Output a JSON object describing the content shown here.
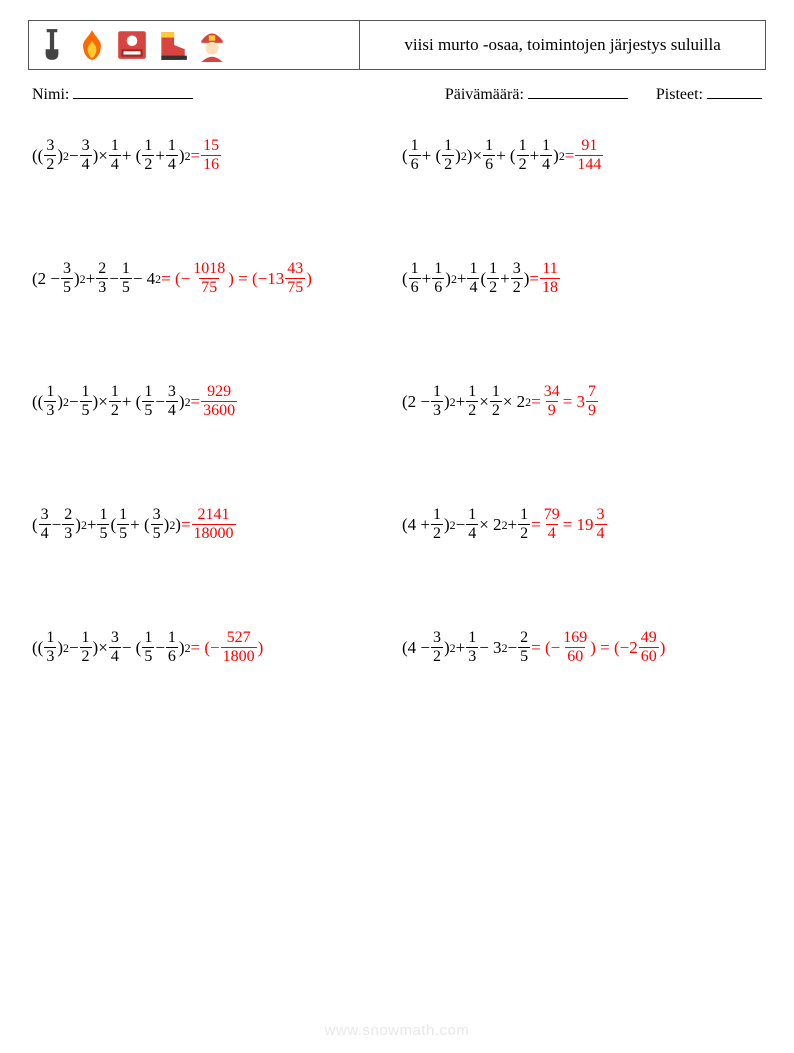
{
  "title": "viisi murto -osaa, toimintojen järjestys suluilla",
  "labels": {
    "name": "Nimi:",
    "date": "Päivämäärä:",
    "score": "Pisteet:"
  },
  "footer": "www.snowmath.com",
  "icons": [
    {
      "name": "shovel-icon",
      "fg": "#444444",
      "bg": "none",
      "shape": "shovel"
    },
    {
      "name": "fire-icon",
      "fg": "#ff6a00",
      "bg": "none",
      "shape": "flame"
    },
    {
      "name": "alarm-icon",
      "fg": "#ffffff",
      "bg": "#d8443f",
      "shape": "alarm"
    },
    {
      "name": "boot-icon",
      "fg": "#d8443f",
      "bg": "#ffcc33",
      "shape": "boot"
    },
    {
      "name": "fireman-icon",
      "fg": "#d8443f",
      "bg": "#ffcc33",
      "shape": "fireman"
    }
  ],
  "colors": {
    "text": "#000000",
    "answer": "#ff0000",
    "border": "#555555",
    "footer": "#e8e8e8"
  },
  "problems": [
    {
      "lhs": [
        {
          "t": "("
        },
        {
          "t": "("
        },
        {
          "frac": [
            3,
            2
          ]
        },
        {
          "t": ")"
        },
        {
          "sup": "2"
        },
        {
          "t": " − "
        },
        {
          "frac": [
            3,
            4
          ]
        },
        {
          "t": ")"
        },
        {
          "t": " × "
        },
        {
          "frac": [
            1,
            4
          ]
        },
        {
          "t": " + ("
        },
        {
          "frac": [
            1,
            2
          ]
        },
        {
          "t": " + "
        },
        {
          "frac": [
            1,
            4
          ]
        },
        {
          "t": ")"
        },
        {
          "sup": "2"
        }
      ],
      "rhs": [
        {
          "t": " = "
        },
        {
          "frac": [
            15,
            16
          ]
        }
      ]
    },
    {
      "lhs": [
        {
          "t": "("
        },
        {
          "frac": [
            1,
            6
          ]
        },
        {
          "t": " + ("
        },
        {
          "frac": [
            1,
            2
          ]
        },
        {
          "t": ")"
        },
        {
          "sup": "2"
        },
        {
          "t": ")"
        },
        {
          "t": " × "
        },
        {
          "frac": [
            1,
            6
          ]
        },
        {
          "t": " + ("
        },
        {
          "frac": [
            1,
            2
          ]
        },
        {
          "t": " + "
        },
        {
          "frac": [
            1,
            4
          ]
        },
        {
          "t": ")"
        },
        {
          "sup": "2"
        }
      ],
      "rhs": [
        {
          "t": " = "
        },
        {
          "frac": [
            91,
            144
          ]
        }
      ]
    },
    {
      "lhs": [
        {
          "t": "(2 − "
        },
        {
          "frac": [
            3,
            5
          ]
        },
        {
          "t": ")"
        },
        {
          "sup": "2"
        },
        {
          "t": " + "
        },
        {
          "frac": [
            2,
            3
          ]
        },
        {
          "t": " − "
        },
        {
          "frac": [
            1,
            5
          ]
        },
        {
          "t": " − 4"
        },
        {
          "sup": "2"
        }
      ],
      "rhs": [
        {
          "t": " = (−"
        },
        {
          "frac": [
            1018,
            75
          ]
        },
        {
          "t": ") = (−13"
        },
        {
          "frac": [
            43,
            75
          ]
        },
        {
          "t": ")"
        }
      ]
    },
    {
      "lhs": [
        {
          "t": "("
        },
        {
          "frac": [
            1,
            6
          ]
        },
        {
          "t": " + "
        },
        {
          "frac": [
            1,
            6
          ]
        },
        {
          "t": ")"
        },
        {
          "sup": "2"
        },
        {
          "t": " + "
        },
        {
          "frac": [
            1,
            4
          ]
        },
        {
          "t": "("
        },
        {
          "frac": [
            1,
            2
          ]
        },
        {
          "t": " + "
        },
        {
          "frac": [
            3,
            2
          ]
        },
        {
          "t": ")"
        }
      ],
      "rhs": [
        {
          "t": " = "
        },
        {
          "frac": [
            11,
            18
          ]
        }
      ]
    },
    {
      "lhs": [
        {
          "t": "(("
        },
        {
          "frac": [
            1,
            3
          ]
        },
        {
          "t": ")"
        },
        {
          "sup": "2"
        },
        {
          "t": " − "
        },
        {
          "frac": [
            1,
            5
          ]
        },
        {
          "t": ")"
        },
        {
          "t": " × "
        },
        {
          "frac": [
            1,
            2
          ]
        },
        {
          "t": " + ("
        },
        {
          "frac": [
            1,
            5
          ]
        },
        {
          "t": " − "
        },
        {
          "frac": [
            3,
            4
          ]
        },
        {
          "t": ")"
        },
        {
          "sup": "2"
        }
      ],
      "rhs": [
        {
          "t": " = "
        },
        {
          "frac": [
            929,
            3600
          ]
        }
      ]
    },
    {
      "lhs": [
        {
          "t": "(2 − "
        },
        {
          "frac": [
            1,
            3
          ]
        },
        {
          "t": ")"
        },
        {
          "sup": "2"
        },
        {
          "t": " + "
        },
        {
          "frac": [
            1,
            2
          ]
        },
        {
          "t": " × "
        },
        {
          "frac": [
            1,
            2
          ]
        },
        {
          "t": " × 2"
        },
        {
          "sup": "2"
        }
      ],
      "rhs": [
        {
          "t": " = "
        },
        {
          "frac": [
            34,
            9
          ]
        },
        {
          "t": " = 3"
        },
        {
          "frac": [
            7,
            9
          ]
        }
      ]
    },
    {
      "lhs": [
        {
          "t": "("
        },
        {
          "frac": [
            3,
            4
          ]
        },
        {
          "t": " − "
        },
        {
          "frac": [
            2,
            3
          ]
        },
        {
          "t": ")"
        },
        {
          "sup": "2"
        },
        {
          "t": " + "
        },
        {
          "frac": [
            1,
            5
          ]
        },
        {
          "t": "("
        },
        {
          "frac": [
            1,
            5
          ]
        },
        {
          "t": " + ("
        },
        {
          "frac": [
            3,
            5
          ]
        },
        {
          "t": ")"
        },
        {
          "sup": "2"
        },
        {
          "t": ")"
        }
      ],
      "rhs": [
        {
          "t": " = "
        },
        {
          "frac": [
            2141,
            18000
          ]
        }
      ]
    },
    {
      "lhs": [
        {
          "t": "(4 + "
        },
        {
          "frac": [
            1,
            2
          ]
        },
        {
          "t": ")"
        },
        {
          "sup": "2"
        },
        {
          "t": " − "
        },
        {
          "frac": [
            1,
            4
          ]
        },
        {
          "t": " × 2"
        },
        {
          "sup": "2"
        },
        {
          "t": " + "
        },
        {
          "frac": [
            1,
            2
          ]
        }
      ],
      "rhs": [
        {
          "t": " = "
        },
        {
          "frac": [
            79,
            4
          ]
        },
        {
          "t": " = 19"
        },
        {
          "frac": [
            3,
            4
          ]
        }
      ]
    },
    {
      "lhs": [
        {
          "t": "(("
        },
        {
          "frac": [
            1,
            3
          ]
        },
        {
          "t": ")"
        },
        {
          "sup": "2"
        },
        {
          "t": " − "
        },
        {
          "frac": [
            1,
            2
          ]
        },
        {
          "t": ")"
        },
        {
          "t": " × "
        },
        {
          "frac": [
            3,
            4
          ]
        },
        {
          "t": " − ("
        },
        {
          "frac": [
            1,
            5
          ]
        },
        {
          "t": " − "
        },
        {
          "frac": [
            1,
            6
          ]
        },
        {
          "t": ")"
        },
        {
          "sup": "2"
        }
      ],
      "rhs": [
        {
          "t": " = (−"
        },
        {
          "frac": [
            527,
            1800
          ]
        },
        {
          "t": ")"
        }
      ]
    },
    {
      "lhs": [
        {
          "t": "(4 − "
        },
        {
          "frac": [
            3,
            2
          ]
        },
        {
          "t": ")"
        },
        {
          "sup": "2"
        },
        {
          "t": " + "
        },
        {
          "frac": [
            1,
            3
          ]
        },
        {
          "t": " − 3"
        },
        {
          "sup": "2"
        },
        {
          "t": " − "
        },
        {
          "frac": [
            2,
            5
          ]
        }
      ],
      "rhs": [
        {
          "t": " = (−"
        },
        {
          "frac": [
            169,
            60
          ]
        },
        {
          "t": ") = (−2"
        },
        {
          "frac": [
            49,
            60
          ]
        },
        {
          "t": ")"
        }
      ]
    }
  ]
}
